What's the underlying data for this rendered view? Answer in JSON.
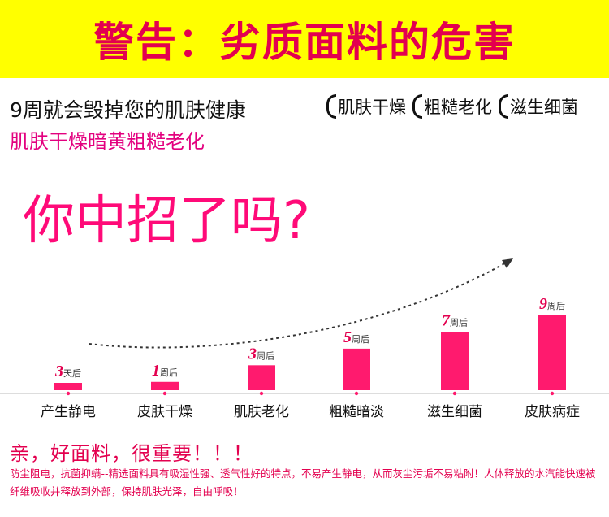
{
  "banner": {
    "title": "警告：劣质面料的危害"
  },
  "subtitle": "9周就会毁掉您的肌肤健康",
  "tags": [
    "肌肤干燥",
    "粗糙老化",
    "滋生细菌"
  ],
  "subtitle2": "肌肤干燥暗黄粗糙老化",
  "headline": "你中招了吗?",
  "chart_data": {
    "type": "bar",
    "categories": [
      "产生静电",
      "皮肤干燥",
      "肌肤老化",
      "粗糙暗淡",
      "滋生细菌",
      "皮肤病症"
    ],
    "values": [
      3,
      7,
      21,
      35,
      49,
      63
    ],
    "bar_labels": [
      {
        "num": "3",
        "unit": "天后"
      },
      {
        "num": "1",
        "unit": "周后"
      },
      {
        "num": "3",
        "unit": "周后"
      },
      {
        "num": "5",
        "unit": "周后"
      },
      {
        "num": "7",
        "unit": "周后"
      },
      {
        "num": "9",
        "unit": "周后"
      }
    ],
    "bar_color": "#ff1a6e",
    "title": "",
    "xlabel": "",
    "ylabel": ""
  },
  "slogan": "亲，好面料，很重要！！！",
  "description": "防尘阻电，抗菌抑螨--精选面料具有吸湿性强、透气性好的特点，不易产生静电，从而灰尘污垢不易粘附！人体释放的水汽能快速被纤维吸收并释放到外部，保持肌肤光泽，自由呼吸！",
  "colors": {
    "banner_bg": "#ffff00",
    "accent": "#e3004f",
    "pink": "#ff0a78"
  },
  "icons": [
    "dotted-arrow-icon"
  ]
}
